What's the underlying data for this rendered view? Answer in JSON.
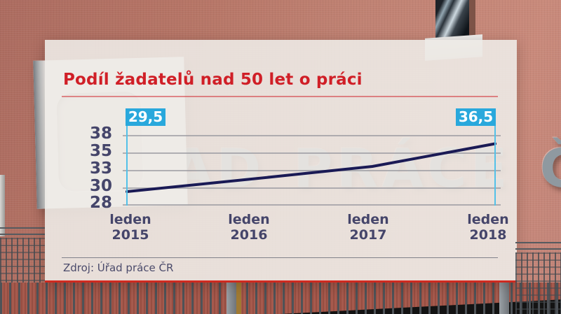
{
  "title": "Podíl žadatelů nad 50 let o práci",
  "source": "Zdroj: Úřad práce ČR",
  "background": {
    "building_sign_text": "ÚŘAD PRÁCE ČR",
    "wall_color": "#bf8172",
    "brick_color": "#a65a4d"
  },
  "colors": {
    "accent_red": "#d01f27",
    "tag_cyan": "#29a8dc",
    "line_navy": "#1a1a55",
    "axis_text": "#45456a",
    "panel_bg": "#edeae6"
  },
  "chart_data": {
    "type": "line",
    "title": "Podíl žadatelů nad 50 let o práci",
    "categories": [
      "leden 2015",
      "leden 2016",
      "leden 2017",
      "leden 2018"
    ],
    "values": [
      29.5,
      31.4,
      33.4,
      36.5
    ],
    "start_label": "29,5",
    "end_label": "36,5",
    "y_ticks": [
      38,
      35,
      33,
      30,
      28
    ],
    "ylim": [
      28,
      38
    ],
    "grid": true,
    "legend": false,
    "source": "Zdroj: Úřad práce ČR"
  }
}
